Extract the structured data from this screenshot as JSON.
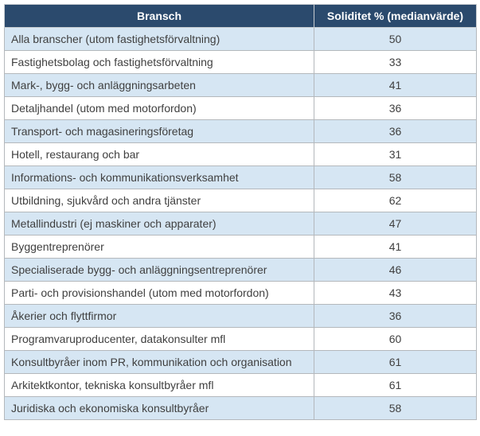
{
  "chart_data": {
    "type": "table",
    "columns": [
      "Bransch",
      "Soliditet % (medianvärde)"
    ],
    "rows": [
      [
        "Alla branscher (utom fastighetsförvaltning)",
        50
      ],
      [
        "Fastighetsbolag och fastighetsförvaltning",
        33
      ],
      [
        "Mark-, bygg- och anläggningsarbeten",
        41
      ],
      [
        "Detaljhandel (utom med motorfordon)",
        36
      ],
      [
        "Transport- och magasineringsföretag",
        36
      ],
      [
        "Hotell, restaurang och bar",
        31
      ],
      [
        "Informations- och kommunikationsverksamhet",
        58
      ],
      [
        "Utbildning, sjukvård och andra tjänster",
        62
      ],
      [
        "Metallindustri (ej maskiner och apparater)",
        47
      ],
      [
        "Byggentreprenörer",
        41
      ],
      [
        "Specialiserade bygg- och anläggningsentreprenörer",
        46
      ],
      [
        "Parti- och provisionshandel (utom med motorfordon)",
        43
      ],
      [
        "Åkerier och flyttfirmor",
        36
      ],
      [
        "Programvaruproducenter, datakonsulter mfl",
        60
      ],
      [
        "Konsultbyråer inom PR, kommunikation och organisation",
        61
      ],
      [
        "Arkitektkontor, tekniska konsultbyråer mfl",
        61
      ],
      [
        "Juridiska och ekonomiska konsultbyråer",
        58
      ]
    ],
    "layout": {
      "striped": true,
      "stripe_rows": "odd",
      "value_alignment": "center"
    }
  },
  "colors": {
    "header_bg": "#2b4a6d",
    "header_text": "#ffffff",
    "row_alt_bg": "#d6e6f3",
    "row_bg": "#ffffff",
    "border": "#b4b8bc",
    "text": "#404040"
  }
}
